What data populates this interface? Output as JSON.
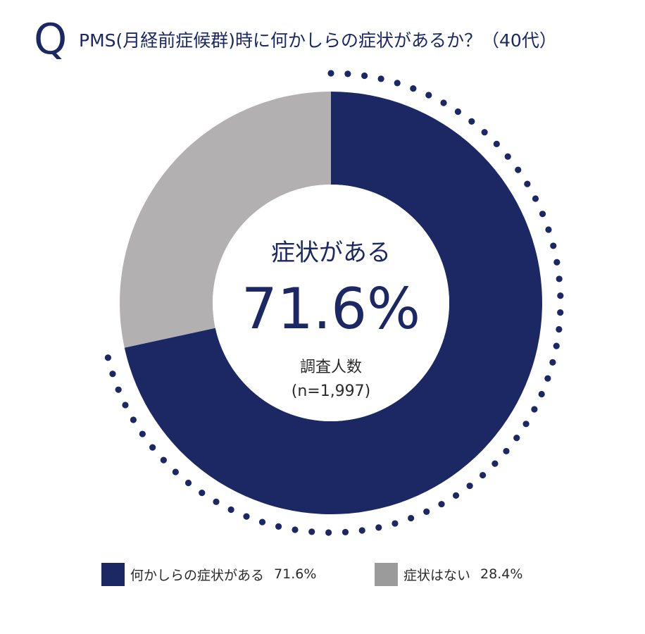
{
  "question_mark": "Q",
  "title": "PMS(月経前症候群)時に何かしらの症状があるか？（40代）",
  "center": {
    "label": "症状がある",
    "value": "71.6%",
    "sample_label": "調査人数",
    "sample_size": "(n=1,997)"
  },
  "legend": [
    {
      "label": "何かしらの症状がある",
      "value": "71.6%",
      "color": "#1b2864"
    },
    {
      "label": "症状はない",
      "value": "28.4%",
      "color": "#9b9b9b"
    }
  ],
  "colors": {
    "primary": "#1b2864",
    "secondary": "#b3b0b1",
    "legend_secondary": "#9b9b9b",
    "dots": "#1b2864"
  },
  "chart_data": {
    "type": "pie",
    "categories": [
      "何かしらの症状がある",
      "症状はない"
    ],
    "values": [
      71.6,
      28.4
    ],
    "unit": "%",
    "n": 1997
  }
}
